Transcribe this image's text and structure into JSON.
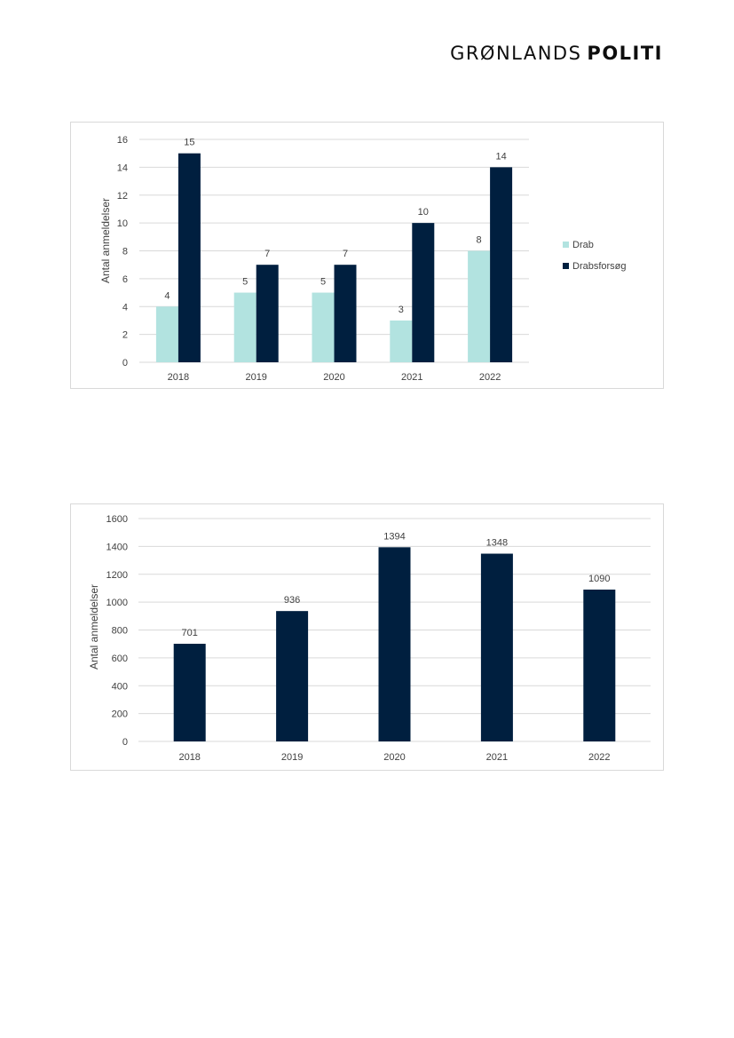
{
  "header": {
    "logo_light": "GRØNLANDS",
    "logo_bold": "POLITI"
  },
  "colors": {
    "drab": "#b2e3e0",
    "drabsforsog": "#001f3f",
    "grid": "#d9d9d9",
    "text": "#404040"
  },
  "chart_data": [
    {
      "type": "bar",
      "categories": [
        "2018",
        "2019",
        "2020",
        "2021",
        "2022"
      ],
      "series": [
        {
          "name": "Drab",
          "values": [
            4,
            5,
            5,
            3,
            8
          ]
        },
        {
          "name": "Drabsforsøg",
          "values": [
            15,
            7,
            7,
            10,
            14
          ]
        }
      ],
      "ylabel": "Antal anmeldelser",
      "ylim": [
        0,
        16
      ],
      "yticks": [
        0,
        2,
        4,
        6,
        8,
        10,
        12,
        14,
        16
      ],
      "legend": "right",
      "grid": true
    },
    {
      "type": "bar",
      "categories": [
        "2018",
        "2019",
        "2020",
        "2021",
        "2022"
      ],
      "values": [
        701,
        936,
        1394,
        1348,
        1090
      ],
      "ylabel": "Antal anmeldelser",
      "ylim": [
        0,
        1600
      ],
      "yticks": [
        0,
        200,
        400,
        600,
        800,
        1000,
        1200,
        1400,
        1600
      ],
      "legend": "none",
      "grid": true
    }
  ]
}
